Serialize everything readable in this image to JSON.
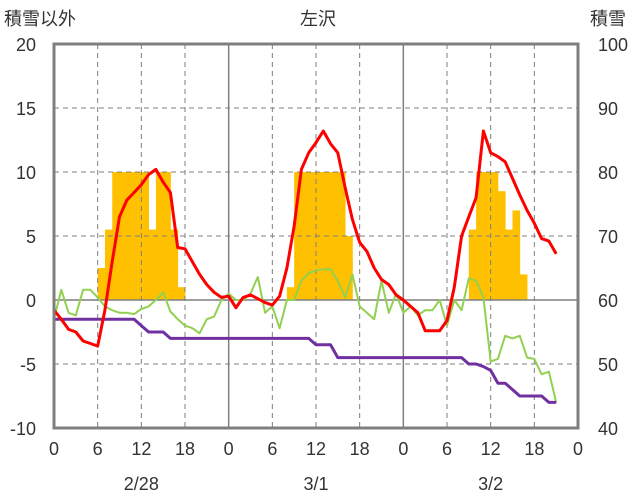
{
  "chart_data": {
    "type": "bar+line",
    "title": "左沢",
    "left_axis_title": "積雪以外",
    "right_axis_title": "積雪",
    "left_ylim": [
      -10,
      20
    ],
    "left_yticks": [
      -10,
      -5,
      0,
      5,
      10,
      15,
      20
    ],
    "right_ylim": [
      40,
      100
    ],
    "right_yticks": [
      40,
      50,
      60,
      70,
      80,
      90,
      100
    ],
    "x_tick_labels": [
      "0",
      "6",
      "12",
      "18",
      "0",
      "6",
      "12",
      "18",
      "0",
      "6",
      "12",
      "18",
      "0"
    ],
    "day_labels": [
      "2/28",
      "3/1",
      "3/2"
    ],
    "grid": "dashed vertical at 6h, solid at day boundaries, horizontal at 0 and ±5..15",
    "colors": {
      "bars": "#ffc000",
      "red_line": "#ff0000",
      "green_line": "#92d050",
      "purple_line": "#7030a0",
      "grid": "#7f7f7f",
      "frame": "#7f7f7f"
    },
    "bars": [
      {
        "h": 6,
        "v": 65
      },
      {
        "h": 7,
        "v": 71
      },
      {
        "h": 8,
        "v": 80
      },
      {
        "h": 9,
        "v": 80
      },
      {
        "h": 10,
        "v": 80
      },
      {
        "h": 11,
        "v": 80
      },
      {
        "h": 12,
        "v": 80
      },
      {
        "h": 13,
        "v": 71
      },
      {
        "h": 14,
        "v": 80
      },
      {
        "h": 15,
        "v": 80
      },
      {
        "h": 16,
        "v": 71
      },
      {
        "h": 17,
        "v": 62
      },
      {
        "h": 32,
        "v": 62
      },
      {
        "h": 33,
        "v": 80
      },
      {
        "h": 34,
        "v": 80
      },
      {
        "h": 35,
        "v": 80
      },
      {
        "h": 36,
        "v": 80
      },
      {
        "h": 37,
        "v": 80
      },
      {
        "h": 38,
        "v": 80
      },
      {
        "h": 39,
        "v": 80
      },
      {
        "h": 40,
        "v": 70
      },
      {
        "h": 57,
        "v": 71
      },
      {
        "h": 58,
        "v": 80
      },
      {
        "h": 59,
        "v": 80
      },
      {
        "h": 60,
        "v": 80
      },
      {
        "h": 61,
        "v": 77
      },
      {
        "h": 62,
        "v": 71
      },
      {
        "h": 63,
        "v": 74
      },
      {
        "h": 64,
        "v": 64
      }
    ],
    "red_series": [
      -0.8,
      -1.5,
      -2.3,
      -2.5,
      -3.2,
      -3.4,
      -3.6,
      -0.8,
      3.0,
      6.5,
      7.8,
      8.4,
      9.0,
      9.8,
      10.2,
      9.2,
      8.4,
      4.1,
      4.0,
      3.0,
      2.0,
      1.2,
      0.6,
      0.2,
      0.3,
      -0.6,
      0.2,
      0.4,
      0.1,
      -0.2,
      -0.4,
      0.3,
      2.5,
      5.8,
      10.2,
      11.5,
      12.3,
      13.2,
      12.2,
      11.5,
      8.8,
      6.3,
      4.5,
      3.8,
      2.5,
      1.6,
      1.2,
      0.4,
      0.0,
      -0.5,
      -1.0,
      -2.4,
      -2.4,
      -2.4,
      -1.6,
      1.0,
      5.0,
      6.5,
      8.0,
      13.2,
      11.5,
      11.2,
      10.8,
      9.5,
      8.2,
      7.0,
      6.0,
      4.8,
      4.6,
      3.6
    ],
    "green_series": [
      -1.5,
      0.8,
      -1.0,
      -1.2,
      0.8,
      0.8,
      0.2,
      -0.5,
      -0.8,
      -1.0,
      -1.0,
      -1.1,
      -0.7,
      -0.5,
      0.0,
      0.6,
      -0.9,
      -1.5,
      -2.0,
      -2.2,
      -2.6,
      -1.5,
      -1.3,
      0.0,
      0.5,
      0.0,
      0.0,
      0.5,
      1.8,
      -1.0,
      -0.5,
      -2.2,
      0.0,
      0.0,
      1.5,
      2.1,
      2.3,
      2.4,
      2.4,
      1.5,
      0.2,
      2.0,
      -0.5,
      -1.0,
      -1.5,
      1.5,
      -1.0,
      0.5,
      -1.0,
      -0.5,
      -1.2,
      -0.8,
      -0.8,
      0.0,
      -2.0,
      0.0,
      -0.8,
      1.7,
      1.5,
      0.2,
      -4.8,
      -4.6,
      -2.8,
      -3.0,
      -2.8,
      -4.5,
      -4.6,
      -5.8,
      -5.6,
      -8.0
    ],
    "purple_series": [
      -1.5,
      -1.5,
      -1.5,
      -1.5,
      -1.5,
      -1.5,
      -1.5,
      -1.5,
      -1.5,
      -1.5,
      -1.5,
      -1.5,
      -2.0,
      -2.5,
      -2.5,
      -2.5,
      -3.0,
      -3.0,
      -3.0,
      -3.0,
      -3.0,
      -3.0,
      -3.0,
      -3.0,
      -3.0,
      -3.0,
      -3.0,
      -3.0,
      -3.0,
      -3.0,
      -3.0,
      -3.0,
      -3.0,
      -3.0,
      -3.0,
      -3.0,
      -3.5,
      -3.5,
      -3.5,
      -4.5,
      -4.5,
      -4.5,
      -4.5,
      -4.5,
      -4.5,
      -4.5,
      -4.5,
      -4.5,
      -4.5,
      -4.5,
      -4.5,
      -4.5,
      -4.5,
      -4.5,
      -4.5,
      -4.5,
      -4.5,
      -5.0,
      -5.0,
      -5.2,
      -5.5,
      -6.5,
      -6.5,
      -7.0,
      -7.5,
      -7.5,
      -7.5,
      -7.5,
      -8.0,
      -8.0
    ],
    "series_start_hour": 0,
    "x_max_hour": 72
  }
}
